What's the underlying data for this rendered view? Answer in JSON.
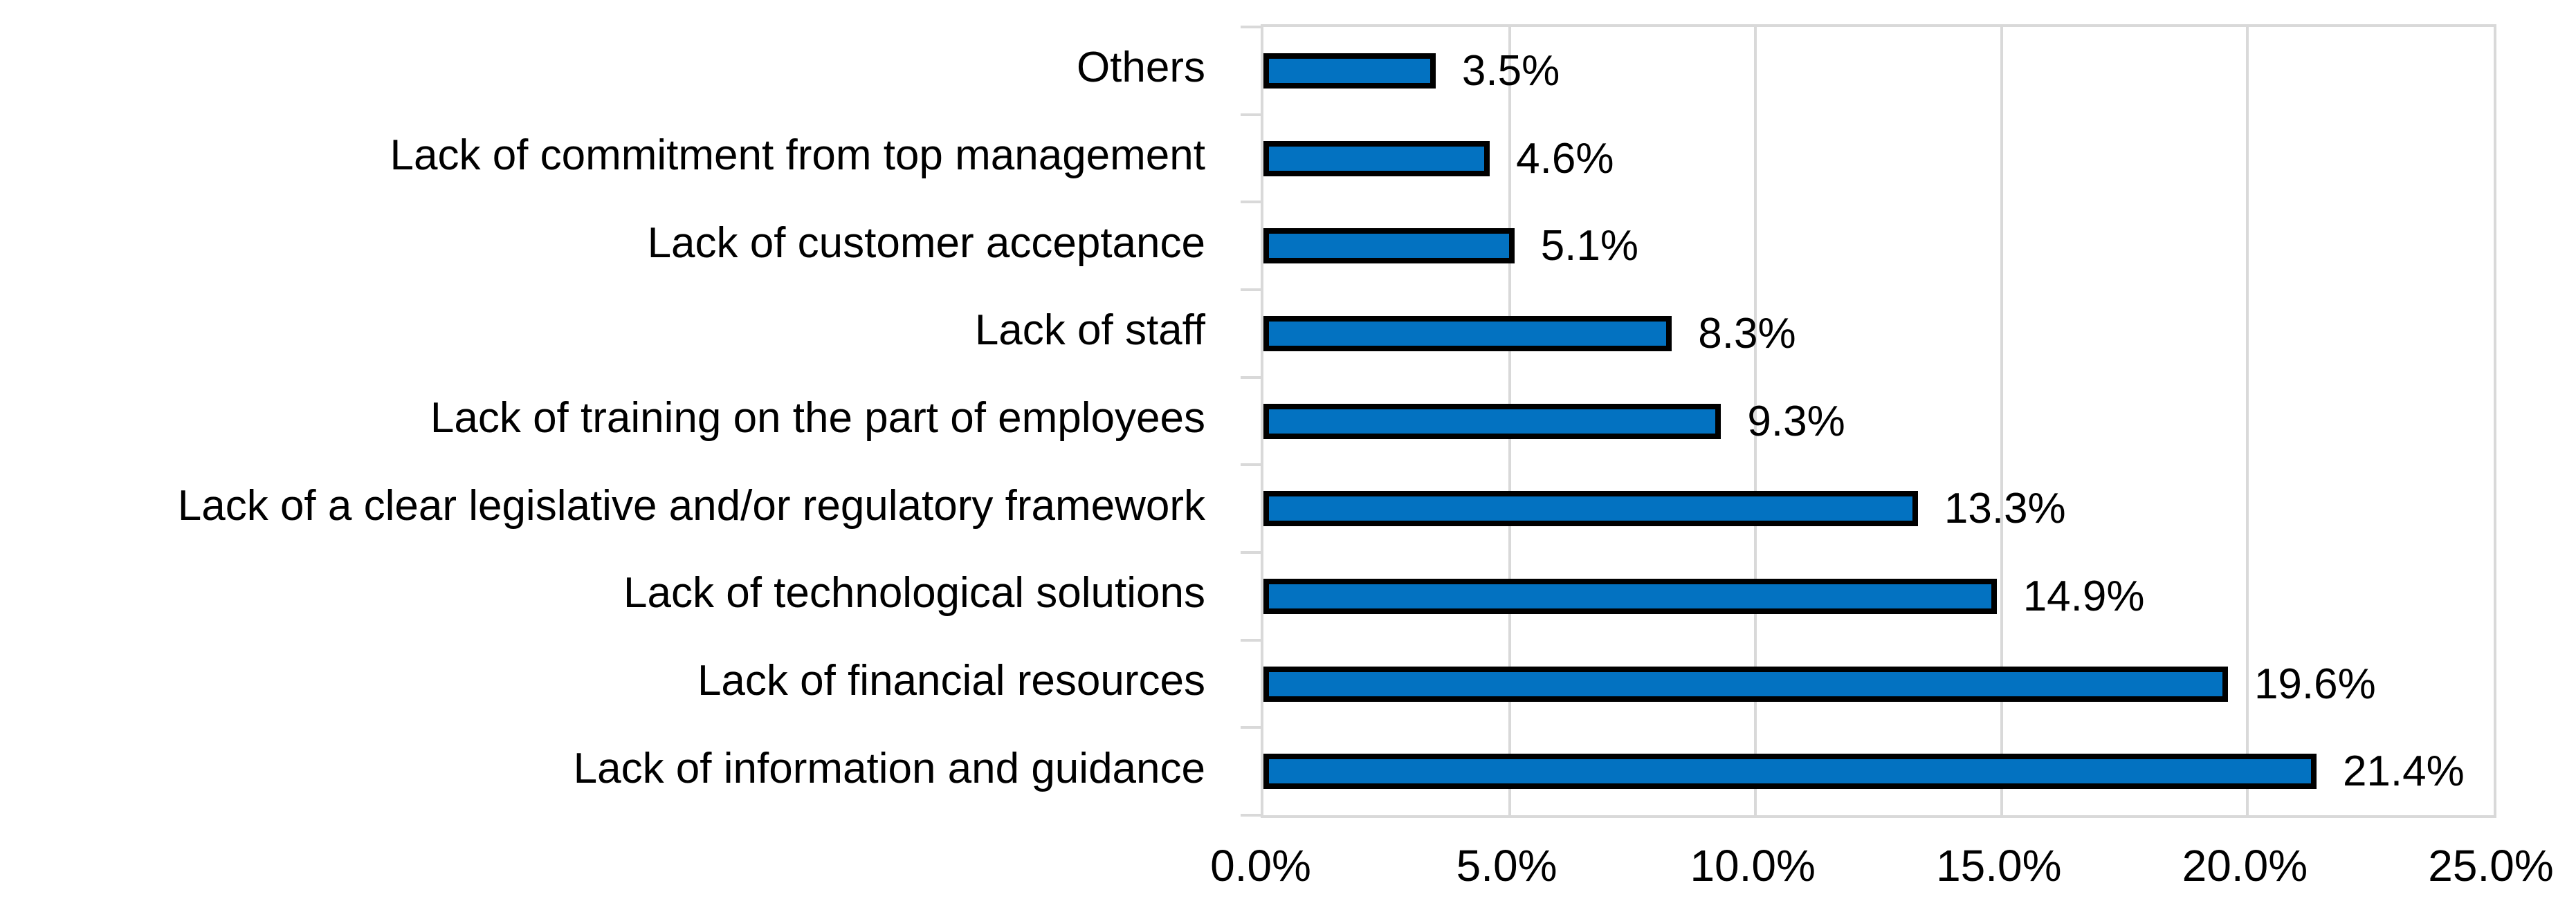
{
  "chart_data": {
    "type": "bar",
    "orientation": "horizontal",
    "title": "",
    "xlabel": "",
    "ylabel": "",
    "categories": [
      "Others",
      "Lack of commitment from top management",
      "Lack of customer acceptance",
      "Lack of staff",
      "Lack of training on the part of employees",
      "Lack of a clear legislative and/or regulatory framework",
      "Lack of technological solutions",
      "Lack of financial resources",
      "Lack of information and guidance"
    ],
    "values": [
      3.5,
      4.6,
      5.1,
      8.3,
      9.3,
      13.3,
      14.9,
      19.6,
      21.4
    ],
    "value_labels": [
      "3.5%",
      "4.6%",
      "5.1%",
      "8.3%",
      "9.3%",
      "13.3%",
      "14.9%",
      "19.6%",
      "21.4%"
    ],
    "xlim": [
      0,
      25
    ],
    "x_ticks": [
      0,
      5,
      10,
      15,
      20,
      25
    ],
    "x_tick_labels": [
      "0.0%",
      "5.0%",
      "10.0%",
      "15.0%",
      "20.0%",
      "25.0%"
    ],
    "grid": "vertical-gridlines-on",
    "legend": "none",
    "colors": {
      "bar_fill": "#0372c1",
      "bar_border": "#000000",
      "gridline": "#d9d9d9",
      "text": "#000000"
    }
  }
}
